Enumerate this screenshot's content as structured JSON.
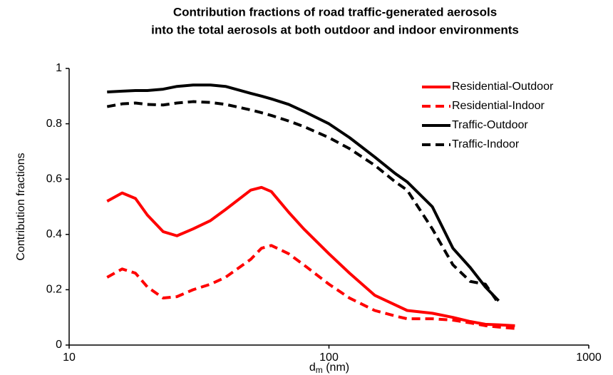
{
  "chart_data": {
    "type": "line",
    "title_lines": [
      "Contribution  fractions of road traffic-generated aerosols",
      "into the total aerosols at both outdoor and indoor environments"
    ],
    "y_label": "Contribution fractions",
    "x_label_parts": [
      "d",
      "m",
      " (nm)"
    ],
    "x": [
      14,
      16,
      18,
      20,
      23,
      26,
      30,
      35,
      40,
      50,
      55,
      60,
      70,
      80,
      100,
      120,
      150,
      180,
      200,
      250,
      300,
      350,
      400,
      450,
      520
    ],
    "xlim": [
      10,
      1000
    ],
    "xticks": [
      10,
      100,
      1000
    ],
    "xlog": true,
    "ylim": [
      0,
      1
    ],
    "yticks": [
      0,
      0.2,
      0.4,
      0.6,
      0.8,
      1
    ],
    "grid": false,
    "legend": "upper right",
    "series": [
      {
        "name": "Residential-Outdoor",
        "color": "#ff0000",
        "dash": false,
        "values": [
          0.52,
          0.55,
          0.53,
          0.47,
          0.41,
          0.395,
          0.42,
          0.45,
          0.49,
          0.56,
          0.57,
          0.555,
          0.48,
          0.42,
          0.33,
          0.26,
          0.18,
          0.145,
          0.125,
          0.115,
          0.1,
          0.085,
          0.075,
          0.073,
          0.07
        ]
      },
      {
        "name": "Residential-Indoor",
        "color": "#ff0000",
        "dash": true,
        "values": [
          0.245,
          0.275,
          0.26,
          0.21,
          0.17,
          0.175,
          0.2,
          0.22,
          0.245,
          0.31,
          0.35,
          0.36,
          0.33,
          0.29,
          0.22,
          0.17,
          0.125,
          0.105,
          0.095,
          0.095,
          0.09,
          0.08,
          0.07,
          0.065,
          0.06
        ]
      },
      {
        "name": "Traffic-Outdoor",
        "color": "#000000",
        "dash": false,
        "values": [
          0.915,
          0.918,
          0.92,
          0.92,
          0.925,
          0.935,
          0.94,
          0.94,
          0.935,
          0.91,
          0.9,
          0.89,
          0.87,
          0.845,
          0.8,
          0.75,
          0.68,
          0.62,
          0.59,
          0.5,
          0.35,
          0.28,
          0.21,
          0.16,
          null
        ]
      },
      {
        "name": "Traffic-Indoor",
        "color": "#000000",
        "dash": true,
        "values": [
          0.862,
          0.872,
          0.875,
          0.87,
          0.868,
          0.875,
          0.88,
          0.877,
          0.87,
          0.85,
          0.84,
          0.83,
          0.81,
          0.79,
          0.75,
          0.71,
          0.65,
          0.59,
          0.56,
          0.42,
          0.29,
          0.23,
          0.22,
          0.15,
          null
        ]
      }
    ]
  }
}
